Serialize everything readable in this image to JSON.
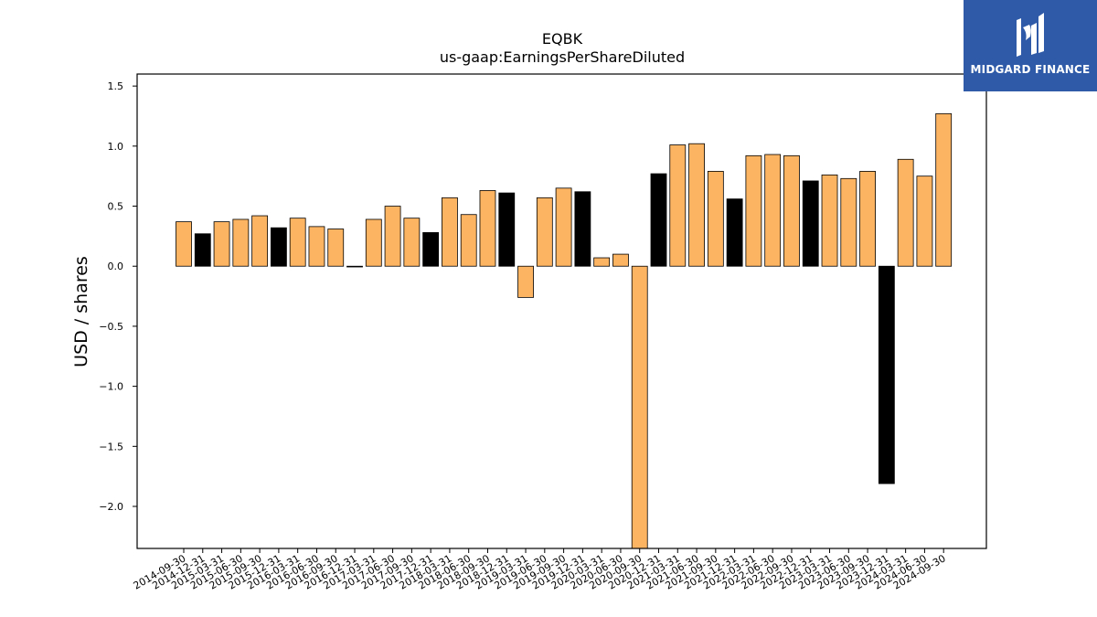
{
  "chart_data": {
    "type": "bar",
    "title": "EQBK",
    "subtitle": "us-gaap:EarningsPerShareDiluted",
    "xlabel": "",
    "ylabel": "USD / shares",
    "ylim": [
      -2.35,
      1.6
    ],
    "yticks": [
      1.5,
      1.0,
      0.5,
      0.0,
      -0.5,
      -1.0,
      -1.5,
      -2.0
    ],
    "ytick_labels": [
      "1.5",
      "1.0",
      "0.5",
      "0.0",
      "−0.5",
      "−1.0",
      "−1.5",
      "−2.0"
    ],
    "grid": false,
    "colors": {
      "orange": "#fdb462",
      "black": "#000000"
    },
    "categories": [
      "2014-09-30",
      "2014-12-31",
      "2015-03-31",
      "2015-06-30",
      "2015-09-30",
      "2015-12-31",
      "2016-03-31",
      "2016-06-30",
      "2016-09-30",
      "2016-12-31",
      "2017-03-31",
      "2017-06-30",
      "2017-09-30",
      "2017-12-31",
      "2018-03-31",
      "2018-06-30",
      "2018-09-30",
      "2018-12-31",
      "2019-03-31",
      "2019-06-30",
      "2019-09-30",
      "2019-12-31",
      "2020-03-31",
      "2020-06-30",
      "2020-09-30",
      "2020-12-31",
      "2021-03-31",
      "2021-06-30",
      "2021-09-30",
      "2021-12-31",
      "2022-03-31",
      "2022-06-30",
      "2022-09-30",
      "2022-12-31",
      "2023-03-31",
      "2023-06-30",
      "2023-09-30",
      "2023-12-31",
      "2024-03-31",
      "2024-06-30",
      "2024-09-30"
    ],
    "values": [
      0.37,
      0.27,
      0.37,
      0.39,
      0.42,
      0.32,
      0.4,
      0.33,
      0.31,
      0.0,
      0.39,
      0.5,
      0.4,
      0.28,
      0.57,
      0.43,
      0.63,
      0.61,
      -0.26,
      0.57,
      0.65,
      0.62,
      0.07,
      0.1,
      -2.4,
      0.77,
      1.01,
      1.02,
      0.79,
      0.56,
      0.92,
      0.93,
      0.92,
      0.71,
      0.76,
      0.73,
      0.79,
      -1.81,
      0.89,
      0.75,
      1.27
    ],
    "bar_colors": [
      "orange",
      "black",
      "orange",
      "orange",
      "orange",
      "black",
      "orange",
      "orange",
      "orange",
      "black",
      "orange",
      "orange",
      "orange",
      "black",
      "orange",
      "orange",
      "orange",
      "black",
      "orange",
      "orange",
      "orange",
      "black",
      "orange",
      "orange",
      "orange",
      "black",
      "orange",
      "orange",
      "orange",
      "black",
      "orange",
      "orange",
      "orange",
      "black",
      "orange",
      "orange",
      "orange",
      "black",
      "orange",
      "orange",
      "orange"
    ]
  },
  "logo": {
    "name": "MIDGARD FINANCE",
    "icon": "midgard-logo-icon",
    "background": "#2e5aa8"
  }
}
